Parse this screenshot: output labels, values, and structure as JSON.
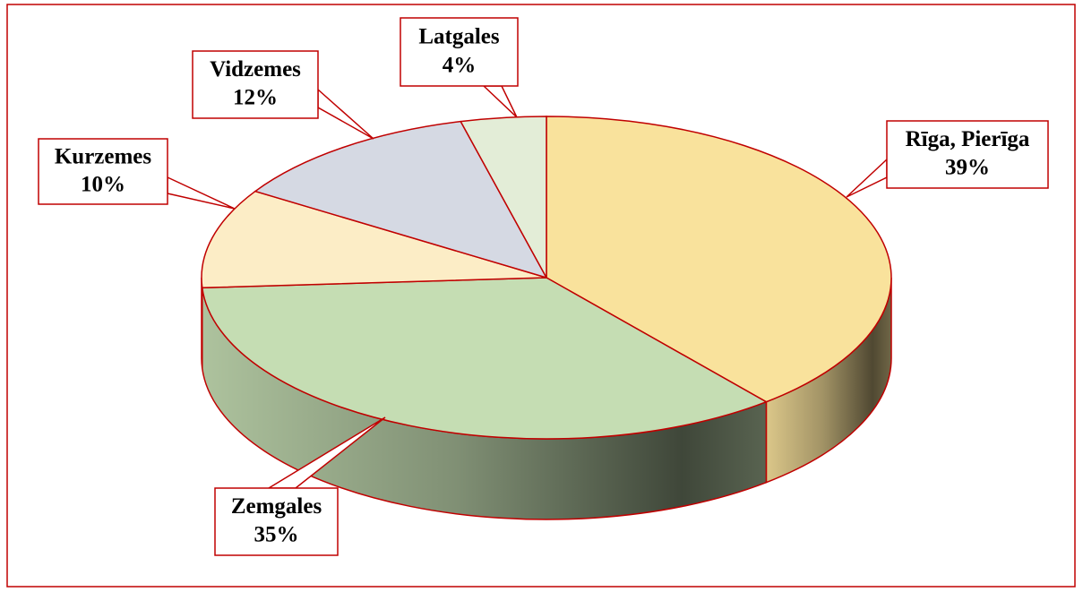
{
  "chart_data": {
    "type": "pie",
    "categories": [
      "Rīga, Pierīga",
      "Zemgales",
      "Kurzemes",
      "Vidzemes",
      "Latgales"
    ],
    "values": [
      39,
      35,
      10,
      12,
      4
    ],
    "value_labels": [
      "39%",
      "35%",
      "10%",
      "12%",
      "4%"
    ],
    "colors": [
      "#f9e29c",
      "#c5ddb3",
      "#fcedc6",
      "#d5d9e3",
      "#e3edd7"
    ]
  }
}
